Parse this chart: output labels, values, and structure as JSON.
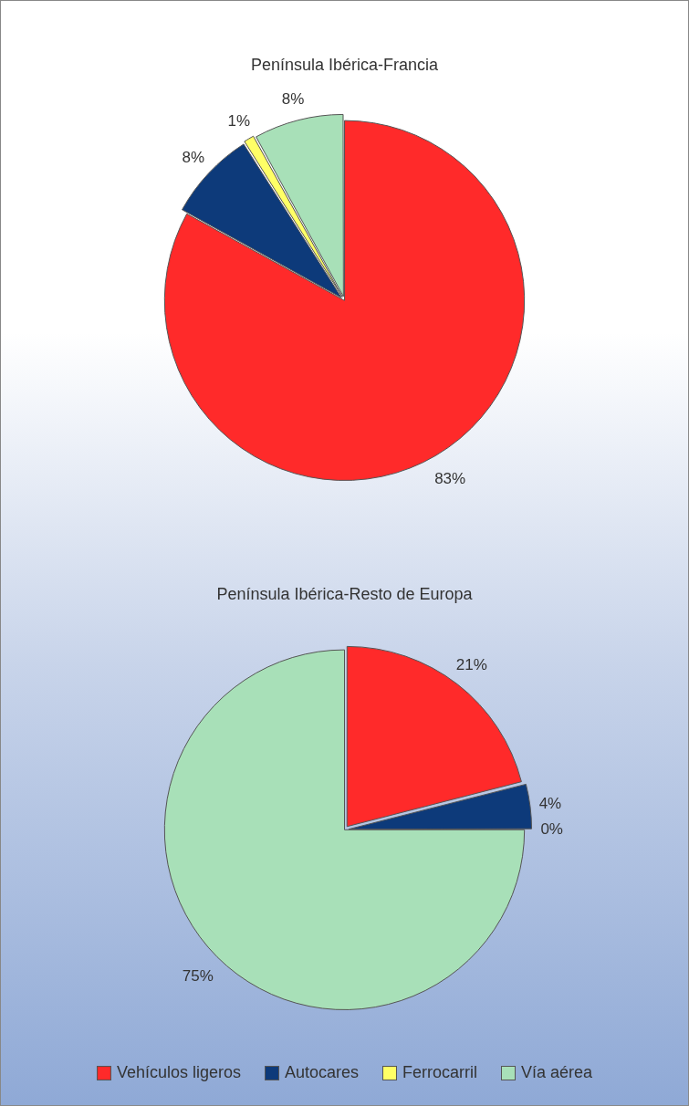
{
  "chart_data": [
    {
      "type": "pie",
      "title": "Península Ibérica-Francia",
      "categories": [
        null,
        null,
        null,
        null
      ],
      "values": [
        83,
        8,
        1,
        8
      ],
      "colors": [
        "#ff2a2a",
        "#0d3a7a",
        "#ffff66",
        "#a8e0b8"
      ],
      "value_labels": [
        "83%",
        "8%",
        "1%",
        "8%"
      ],
      "legend": false
    },
    {
      "type": "pie",
      "title": "Península Ibérica-Resto de Europa",
      "categories": [
        "Vehículos ligeros",
        "Autocares",
        "Ferrocarril",
        "Vía aérea"
      ],
      "values": [
        21,
        4,
        0,
        75
      ],
      "colors": [
        "#ff2a2a",
        "#0d3a7a",
        "#ffff66",
        "#a8e0b8"
      ],
      "value_labels": [
        "21%",
        "4%",
        "0%",
        "75%"
      ],
      "legend": "bottom"
    }
  ]
}
